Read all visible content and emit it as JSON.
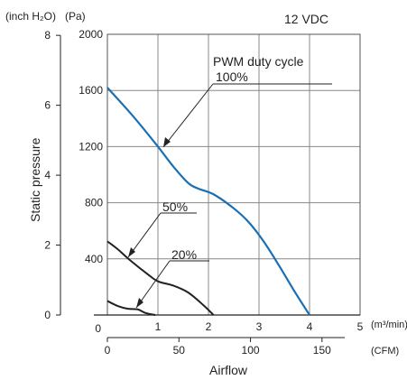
{
  "chart_data": {
    "type": "line",
    "title": "12 VDC",
    "xlabel": "Airflow",
    "ylabel": "Static pressure",
    "x_axis_primary": {
      "unit": "(m³/min)",
      "range": [
        0,
        5
      ],
      "ticks": [
        "1",
        "2",
        "3",
        "4",
        "5"
      ],
      "origin_label": "0"
    },
    "x_axis_secondary": {
      "unit": "(CFM)",
      "range": [
        0,
        176.6
      ],
      "ticks": [
        "0",
        "50",
        "100",
        "150"
      ]
    },
    "y_axis_primary": {
      "unit": "(Pa)",
      "range": [
        0,
        2000
      ],
      "ticks": [
        "400",
        "800",
        "1200",
        "1600",
        "2000"
      ],
      "origin_label": "0"
    },
    "y_axis_secondary": {
      "unit": "(inch H₂O)",
      "range": [
        0,
        8.03
      ],
      "ticks": [
        "0",
        "2",
        "4",
        "6",
        "8"
      ]
    },
    "annotation_title": "PWM duty cycle",
    "grid": true,
    "series": [
      {
        "name": "100%",
        "color": "#1a6fb5",
        "points": [
          [
            0,
            1620
          ],
          [
            0.5,
            1420
          ],
          [
            1.0,
            1200
          ],
          [
            1.3,
            1060
          ],
          [
            1.6,
            940
          ],
          [
            1.8,
            900
          ],
          [
            2.1,
            860
          ],
          [
            2.5,
            760
          ],
          [
            2.8,
            660
          ],
          [
            3.1,
            520
          ],
          [
            3.4,
            350
          ],
          [
            3.7,
            170
          ],
          [
            4.0,
            0
          ]
        ]
      },
      {
        "name": "50%",
        "color": "#222222",
        "points": [
          [
            0,
            525
          ],
          [
            0.2,
            470
          ],
          [
            0.45,
            390
          ],
          [
            0.8,
            290
          ],
          [
            1.0,
            240
          ],
          [
            1.3,
            210
          ],
          [
            1.6,
            160
          ],
          [
            1.9,
            70
          ],
          [
            2.1,
            0
          ]
        ]
      },
      {
        "name": "20%",
        "color": "#222222",
        "points": [
          [
            0,
            100
          ],
          [
            0.2,
            65
          ],
          [
            0.4,
            45
          ],
          [
            0.6,
            40
          ],
          [
            0.75,
            15
          ],
          [
            0.95,
            0
          ]
        ]
      }
    ]
  }
}
